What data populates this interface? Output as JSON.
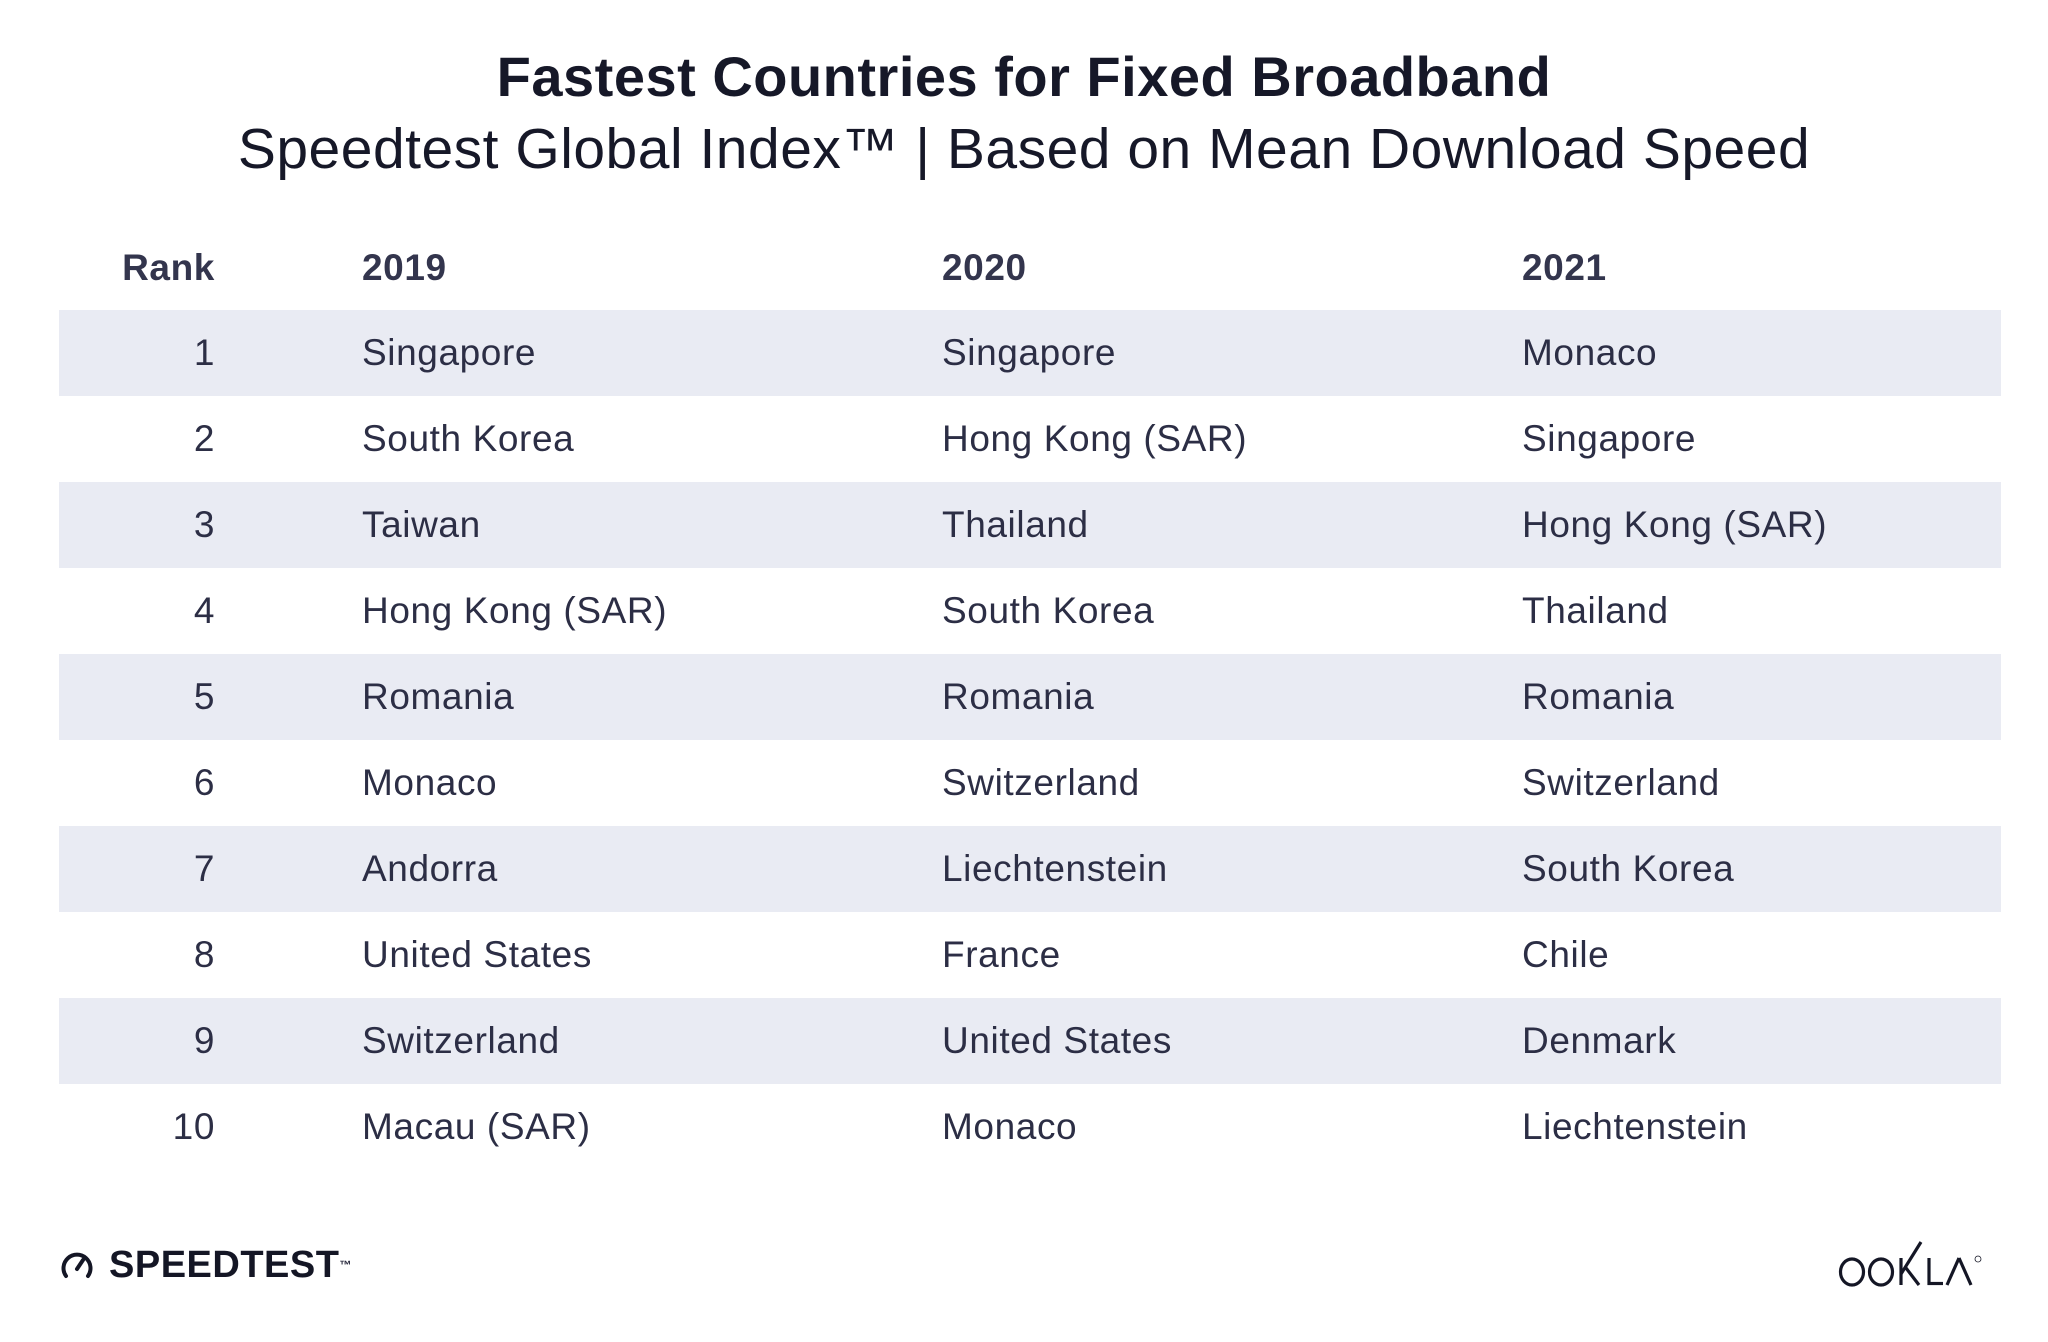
{
  "title": "Fastest Countries for Fixed Broadband",
  "subtitle": "Speedtest Global Index™ | Based on Mean Download Speed",
  "table": {
    "headers": {
      "rank": "Rank",
      "y2019": "2019",
      "y2020": "2020",
      "y2021": "2021"
    },
    "rows": [
      {
        "rank": "1",
        "y2019": "Singapore",
        "y2020": "Singapore",
        "y2021": "Monaco"
      },
      {
        "rank": "2",
        "y2019": "South Korea",
        "y2020": "Hong Kong (SAR)",
        "y2021": "Singapore"
      },
      {
        "rank": "3",
        "y2019": "Taiwan",
        "y2020": "Thailand",
        "y2021": "Hong Kong (SAR)"
      },
      {
        "rank": "4",
        "y2019": "Hong Kong (SAR)",
        "y2020": "South Korea",
        "y2021": "Thailand"
      },
      {
        "rank": "5",
        "y2019": "Romania",
        "y2020": "Romania",
        "y2021": "Romania"
      },
      {
        "rank": "6",
        "y2019": "Monaco",
        "y2020": "Switzerland",
        "y2021": "Switzerland"
      },
      {
        "rank": "7",
        "y2019": "Andorra",
        "y2020": "Liechtenstein",
        "y2021": "South Korea"
      },
      {
        "rank": "8",
        "y2019": "United States",
        "y2020": "France",
        "y2021": "Chile"
      },
      {
        "rank": "9",
        "y2019": "Switzerland",
        "y2020": "United States",
        "y2021": "Denmark"
      },
      {
        "rank": "10",
        "y2019": "Macau (SAR)",
        "y2020": "Monaco",
        "y2021": "Liechtenstein"
      }
    ]
  },
  "footer": {
    "left_brand": "SPEEDTEST",
    "left_brand_mark": "™",
    "left_icon": "speedometer-gauge-icon",
    "right_brand": "OOKLA",
    "right_brand_mark": "®"
  },
  "colors": {
    "shaded_row": "#e9ebf3",
    "text": "#2c2e45",
    "title": "#161828"
  }
}
